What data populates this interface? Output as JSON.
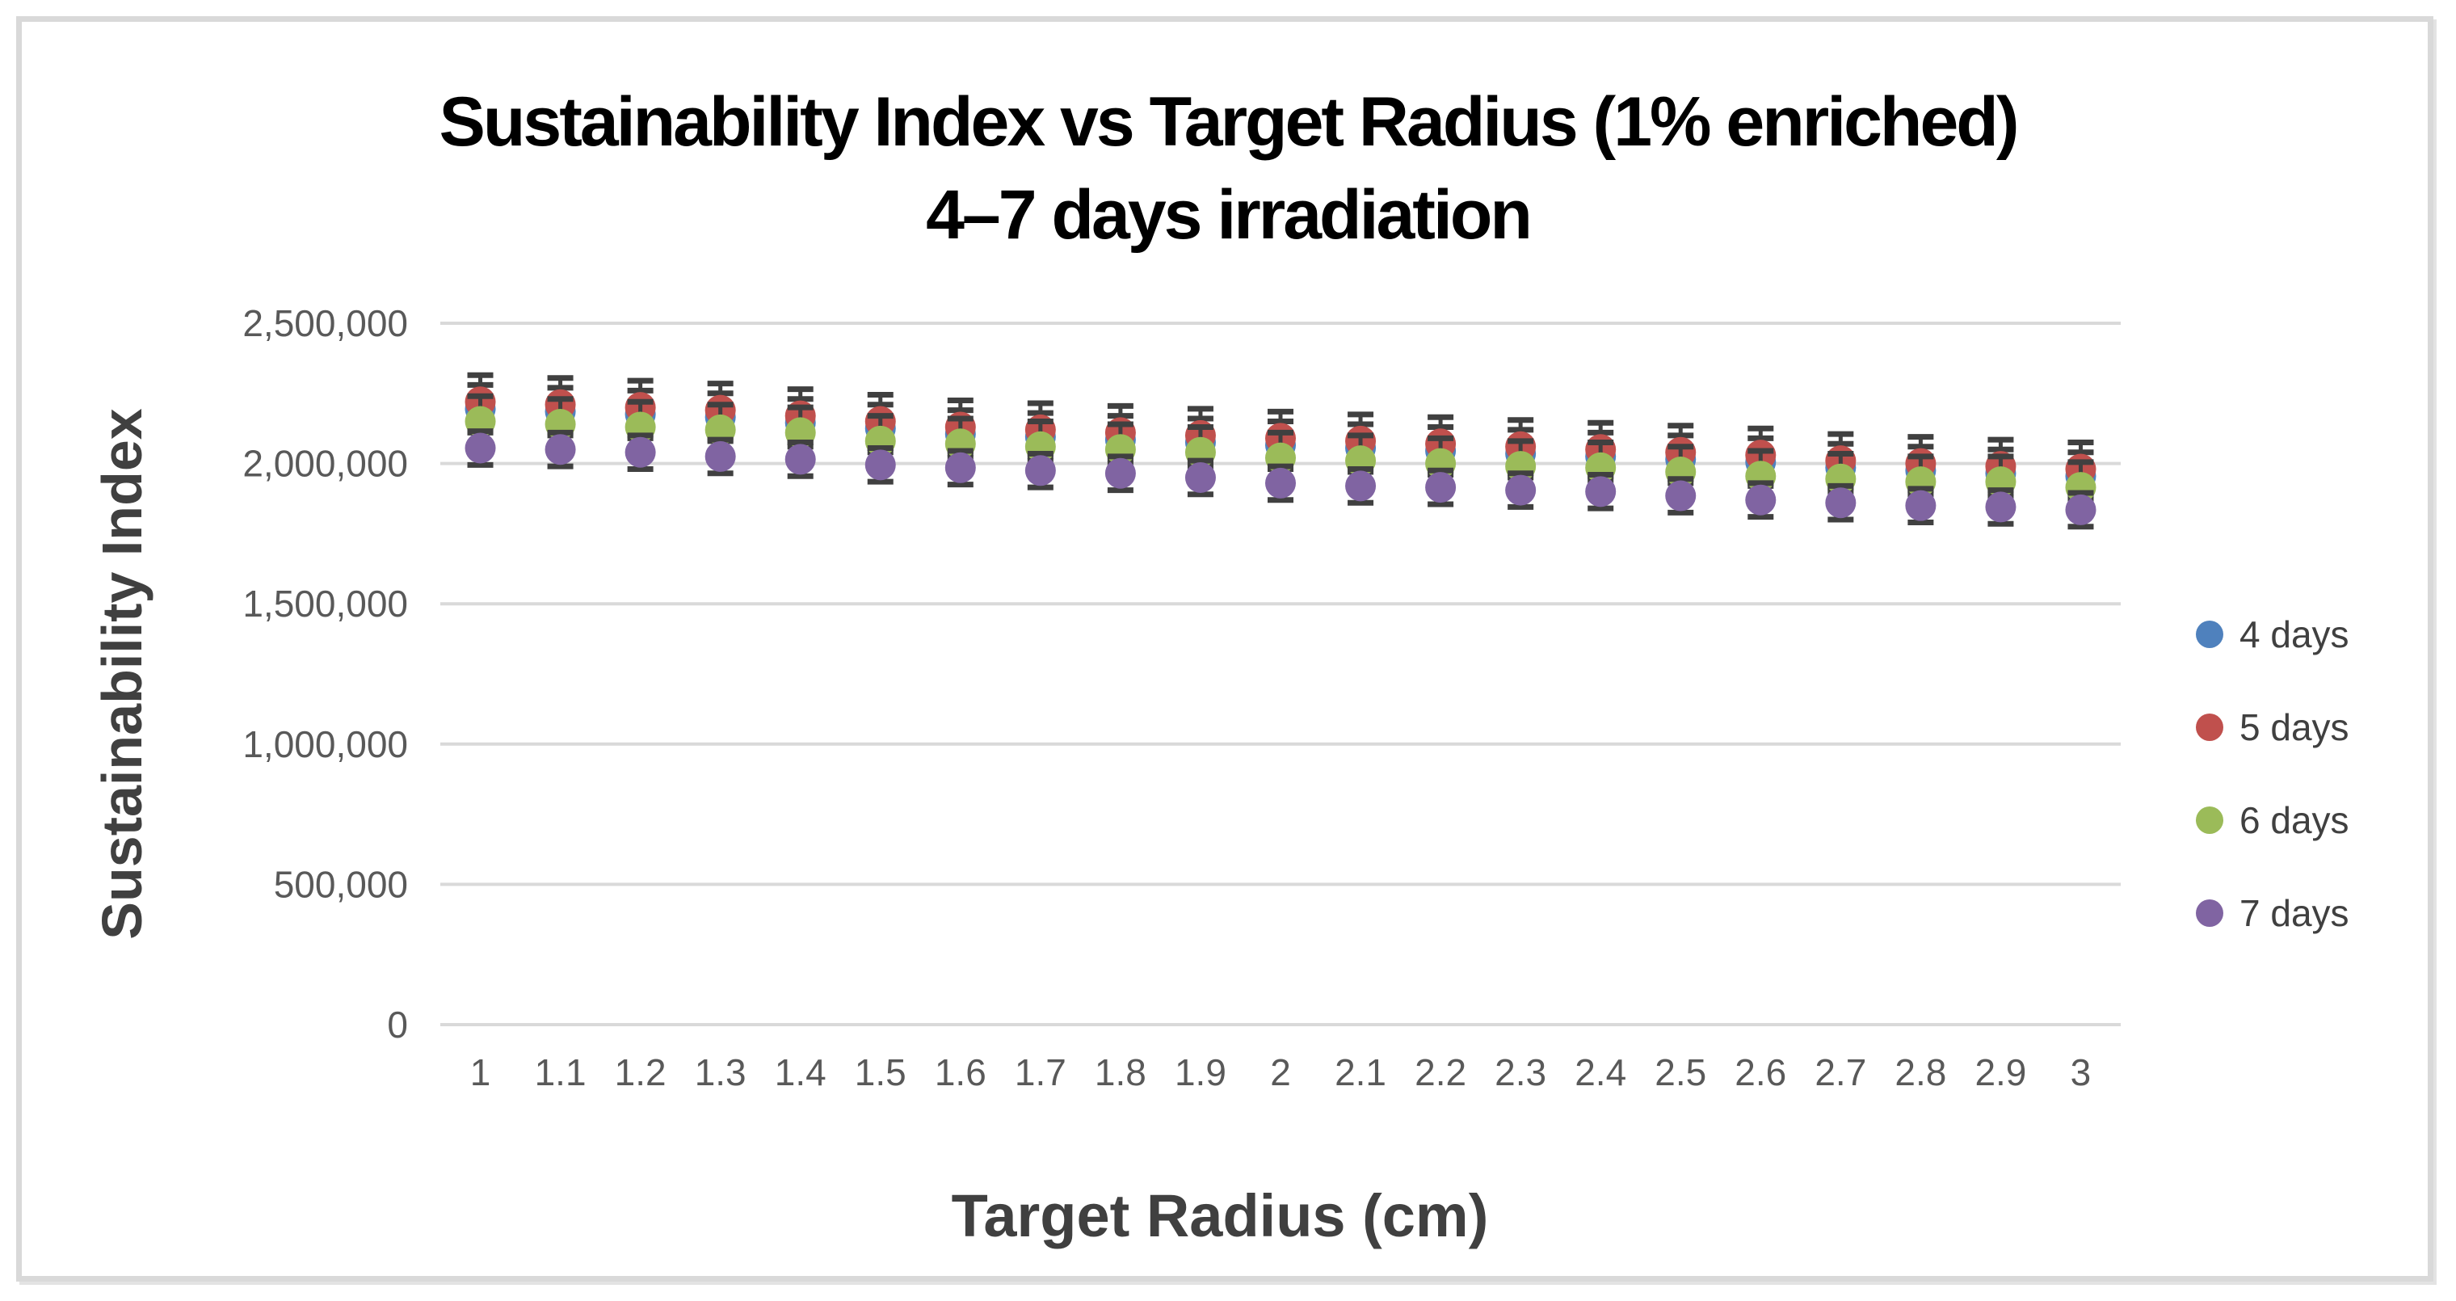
{
  "frame": {
    "border_color": "#d9d9d9",
    "background": "#ffffff"
  },
  "chart_data": {
    "type": "scatter",
    "title": "Sustainability Index vs Target Radius (1% enriched)",
    "subtitle": "4–7 days irradiation",
    "xlabel": "Target Radius (cm)",
    "ylabel": "Sustainability Index",
    "x_categories": [
      "1",
      "1.1",
      "1.2",
      "1.3",
      "1.4",
      "1.5",
      "1.6",
      "1.7",
      "1.8",
      "1.9",
      "2",
      "2.1",
      "2.2",
      "2.3",
      "2.4",
      "2.5",
      "2.6",
      "2.7",
      "2.8",
      "2.9",
      "3"
    ],
    "y_ticks": [
      "0",
      "500,000",
      "1,000,000",
      "1,500,000",
      "2,000,000",
      "2,500,000"
    ],
    "y_tick_values": [
      0,
      500000,
      1000000,
      1500000,
      2000000,
      2500000
    ],
    "ylim": [
      0,
      2500000
    ],
    "grid": true,
    "gridline_color": "#d9d9d9",
    "tick_label_color": "#595959",
    "error_bar_color": "#404040",
    "legend_position": "right",
    "series": [
      {
        "name": "4 days",
        "color": "#4F81BD",
        "error": 85000,
        "values": [
          2195000,
          2185000,
          2175000,
          2165000,
          2145000,
          2125000,
          2105000,
          2095000,
          2085000,
          2075000,
          2065000,
          2055000,
          2045000,
          2035000,
          2025000,
          2015000,
          2005000,
          1985000,
          1975000,
          1965000,
          1955000
        ]
      },
      {
        "name": "5 days",
        "color": "#C0504D",
        "error": 95000,
        "values": [
          2220000,
          2210000,
          2200000,
          2190000,
          2170000,
          2150000,
          2130000,
          2120000,
          2110000,
          2100000,
          2090000,
          2080000,
          2070000,
          2060000,
          2050000,
          2040000,
          2030000,
          2010000,
          2000000,
          1990000,
          1980000
        ]
      },
      {
        "name": "6 days",
        "color": "#9BBB59",
        "error": 90000,
        "values": [
          2150000,
          2140000,
          2130000,
          2120000,
          2110000,
          2080000,
          2070000,
          2060000,
          2050000,
          2040000,
          2020000,
          2010000,
          2000000,
          1990000,
          1985000,
          1970000,
          1955000,
          1945000,
          1935000,
          1935000,
          1915000
        ]
      },
      {
        "name": "7 days",
        "color": "#8064A2",
        "error": 60000,
        "values": [
          2055000,
          2050000,
          2040000,
          2025000,
          2015000,
          1995000,
          1985000,
          1975000,
          1965000,
          1950000,
          1930000,
          1920000,
          1915000,
          1905000,
          1900000,
          1885000,
          1870000,
          1860000,
          1850000,
          1845000,
          1835000
        ]
      }
    ]
  }
}
